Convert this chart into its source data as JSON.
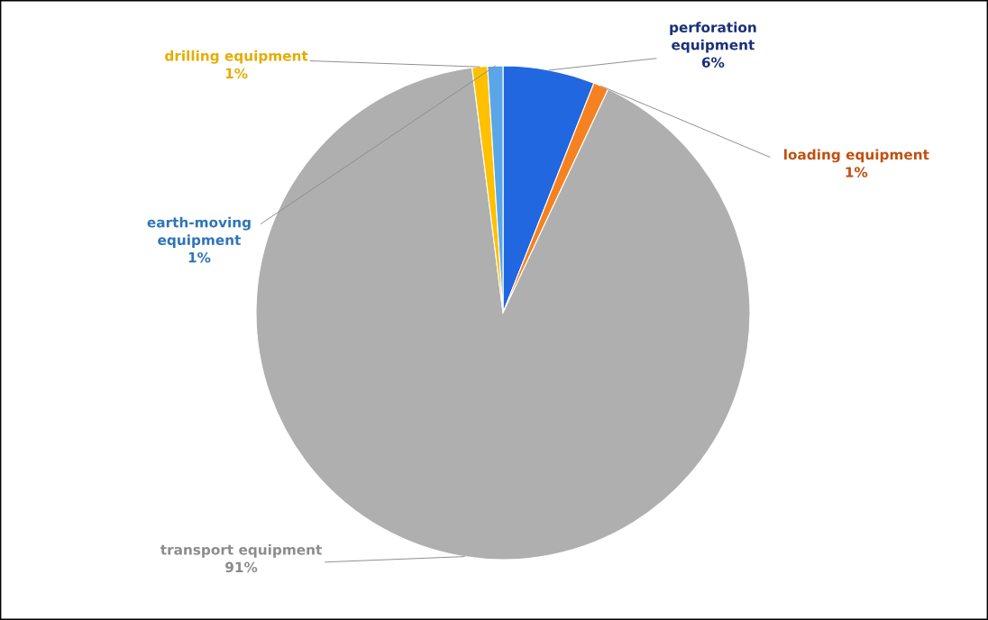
{
  "chart_data": {
    "type": "pie",
    "categories": [
      "perforation equipment",
      "loading equipment",
      "transport equipment",
      "drilling equipment",
      "earth-moving equipment"
    ],
    "values": [
      6,
      1,
      91,
      1,
      1
    ],
    "colors": [
      "#2167e0",
      "#f58220",
      "#afafaf",
      "#ffc000",
      "#5aa6e8"
    ],
    "value_labels": [
      "6%",
      "1%",
      "91%",
      "1%",
      "1%"
    ],
    "legend": false
  }
}
